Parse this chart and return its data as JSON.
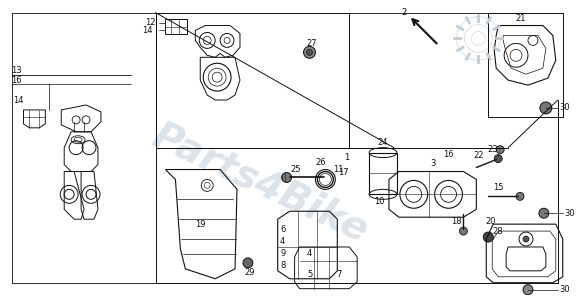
{
  "bg_color": "#ffffff",
  "line_color": "#111111",
  "wm_color": "#c0cdd8",
  "fig_width": 5.78,
  "fig_height": 2.96,
  "dpi": 100
}
